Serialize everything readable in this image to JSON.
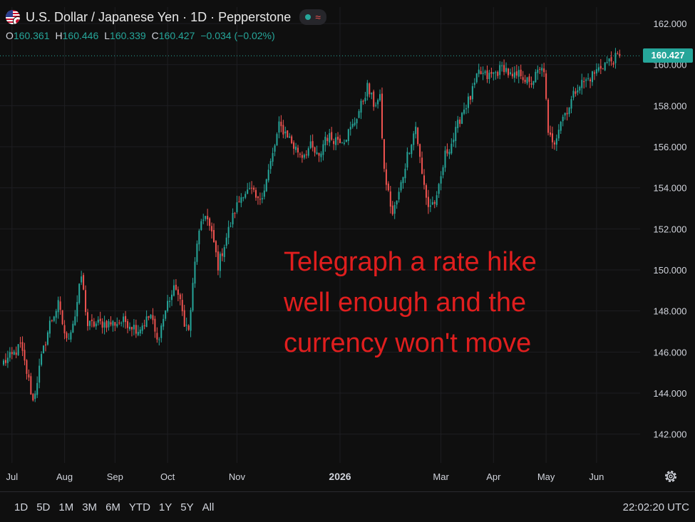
{
  "header": {
    "title": "U.S. Dollar / Japanese Yen · 1D · Pepperstone",
    "ohlc": {
      "o_label": "O",
      "o": "160.361",
      "h_label": "H",
      "h": "160.446",
      "l_label": "L",
      "l": "160.339",
      "c_label": "C",
      "c": "160.427",
      "change": "−0.034 (−0.02%)"
    },
    "icons": [
      "us-flag-icon",
      "jp-flag-icon",
      "market-open-icon",
      "wave-icon"
    ]
  },
  "annotation": {
    "lines": [
      "Telegraph a rate hike",
      "well enough and the",
      "currency won't move"
    ],
    "color": "#e01e1e"
  },
  "last_price_label": "160.427",
  "toolbar": {
    "ranges": [
      "1D",
      "5D",
      "1M",
      "3M",
      "6M",
      "YTD",
      "1Y",
      "5Y",
      "All"
    ],
    "clock": "22:02:20 UTC"
  },
  "colors": {
    "up": "#26a69a",
    "down": "#ef5350",
    "background": "#0f0f0f",
    "grid": "#1e1e22"
  },
  "chart_data": {
    "type": "candlestick",
    "title": "U.S. Dollar / Japanese Yen · 1D · Pepperstone",
    "xlabel": "",
    "ylabel": "",
    "ylim": [
      140.6,
      162.8
    ],
    "y_ticks": [
      "142.000",
      "144.000",
      "146.000",
      "148.000",
      "150.000",
      "152.000",
      "154.000",
      "156.000",
      "158.000",
      "160.000",
      "162.000"
    ],
    "x_ticks": [
      "Jul",
      "Aug",
      "Sep",
      "Oct",
      "Nov",
      "2026",
      "Mar",
      "Apr",
      "May",
      "Jun"
    ],
    "x_tick_period_index": [
      4,
      29,
      53,
      78,
      111,
      160,
      208,
      233,
      258,
      282
    ],
    "grid": true,
    "last_close": 160.427,
    "anchors": [
      [
        0,
        145.5
      ],
      [
        4,
        145.8
      ],
      [
        8,
        146.3
      ],
      [
        12,
        144.6
      ],
      [
        14,
        143.6
      ],
      [
        18,
        145.7
      ],
      [
        22,
        147.4
      ],
      [
        26,
        148.3
      ],
      [
        30,
        146.5
      ],
      [
        34,
        147.8
      ],
      [
        37,
        149.7
      ],
      [
        40,
        147.3
      ],
      [
        46,
        147.4
      ],
      [
        52,
        147.4
      ],
      [
        58,
        147.5
      ],
      [
        64,
        147.1
      ],
      [
        70,
        147.8
      ],
      [
        73,
        146.5
      ],
      [
        78,
        148.4
      ],
      [
        82,
        149.2
      ],
      [
        86,
        147.5
      ],
      [
        88,
        147.0
      ],
      [
        92,
        151.4
      ],
      [
        96,
        152.8
      ],
      [
        100,
        151.3
      ],
      [
        102,
        150.2
      ],
      [
        106,
        151.6
      ],
      [
        110,
        152.9
      ],
      [
        114,
        153.8
      ],
      [
        118,
        153.8
      ],
      [
        121,
        153.3
      ],
      [
        124,
        154.0
      ],
      [
        128,
        155.6
      ],
      [
        131,
        157.0
      ],
      [
        135,
        156.6
      ],
      [
        138,
        156.0
      ],
      [
        142,
        155.6
      ],
      [
        146,
        156.0
      ],
      [
        150,
        155.4
      ],
      [
        153,
        156.5
      ],
      [
        157,
        156.4
      ],
      [
        162,
        156.4
      ],
      [
        166,
        157.0
      ],
      [
        170,
        158.0
      ],
      [
        173,
        158.9
      ],
      [
        176,
        158.1
      ],
      [
        179,
        158.3
      ],
      [
        181,
        154.8
      ],
      [
        183,
        153.7
      ],
      [
        185,
        152.7
      ],
      [
        188,
        153.7
      ],
      [
        192,
        155.6
      ],
      [
        196,
        157.0
      ],
      [
        199,
        154.6
      ],
      [
        202,
        153.1
      ],
      [
        206,
        153.4
      ],
      [
        210,
        155.6
      ],
      [
        214,
        156.4
      ],
      [
        218,
        157.7
      ],
      [
        222,
        158.4
      ],
      [
        226,
        159.6
      ],
      [
        230,
        159.4
      ],
      [
        234,
        159.6
      ],
      [
        238,
        159.9
      ],
      [
        242,
        159.3
      ],
      [
        246,
        159.6
      ],
      [
        250,
        159.0
      ],
      [
        254,
        159.6
      ],
      [
        257,
        159.8
      ],
      [
        259,
        156.5
      ],
      [
        262,
        156.3
      ],
      [
        265,
        157.3
      ],
      [
        269,
        158.0
      ],
      [
        273,
        159.0
      ],
      [
        277,
        159.2
      ],
      [
        281,
        159.6
      ],
      [
        285,
        160.0
      ],
      [
        289,
        160.2
      ],
      [
        293,
        160.4
      ]
    ]
  }
}
